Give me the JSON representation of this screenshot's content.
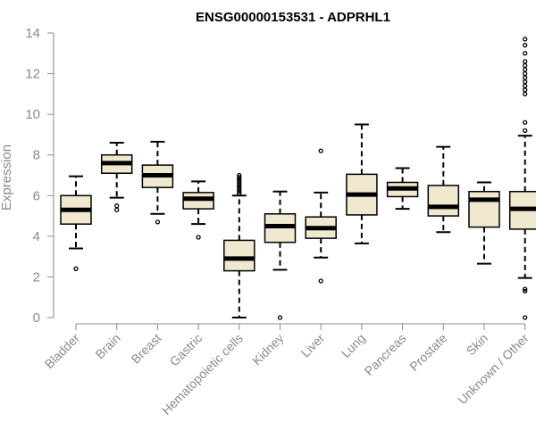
{
  "chart_data": {
    "type": "boxplot",
    "title": "ENSG00000153531 - ADPRHL1",
    "xlabel": "",
    "ylabel": "Expression",
    "ylim": [
      0,
      14
    ],
    "yticks": [
      0,
      2,
      4,
      6,
      8,
      10,
      12,
      14
    ],
    "grid": false,
    "colors": {
      "box_fill": "#f0e8cf",
      "box_stroke": "#000000",
      "axis": "#8a8a8a",
      "label": "#8a8a8a"
    },
    "categories": [
      "Bladder",
      "Brain",
      "Breast",
      "Gastric",
      "Hematopoietic cells",
      "Kidney",
      "Liver",
      "Lung",
      "Pancreas",
      "Prostate",
      "Skin",
      "Unknown / Other"
    ],
    "boxes": [
      {
        "whisker_low": 3.4,
        "q1": 4.6,
        "median": 5.3,
        "q3": 6.0,
        "whisker_high": 6.95,
        "outliers": [
          2.4
        ]
      },
      {
        "whisker_low": 5.9,
        "q1": 7.1,
        "median": 7.6,
        "q3": 8.0,
        "whisker_high": 8.6,
        "outliers": [
          5.3,
          5.5
        ]
      },
      {
        "whisker_low": 5.1,
        "q1": 6.4,
        "median": 7.0,
        "q3": 7.5,
        "whisker_high": 8.65,
        "outliers": [
          4.7
        ]
      },
      {
        "whisker_low": 4.6,
        "q1": 5.35,
        "median": 5.85,
        "q3": 6.15,
        "whisker_high": 6.7,
        "outliers": [
          3.95
        ]
      },
      {
        "whisker_low": 0.0,
        "q1": 2.3,
        "median": 2.9,
        "q3": 3.8,
        "whisker_high": 6.0,
        "outliers": [
          6.1,
          6.2,
          6.3,
          6.4,
          6.5,
          6.6,
          6.7,
          6.8,
          6.9,
          7.0
        ]
      },
      {
        "whisker_low": 2.35,
        "q1": 3.7,
        "median": 4.5,
        "q3": 5.1,
        "whisker_high": 6.2,
        "outliers": [
          0.0
        ]
      },
      {
        "whisker_low": 2.95,
        "q1": 3.9,
        "median": 4.4,
        "q3": 4.95,
        "whisker_high": 6.15,
        "outliers": [
          1.8,
          8.2
        ]
      },
      {
        "whisker_low": 3.65,
        "q1": 5.05,
        "median": 6.05,
        "q3": 7.05,
        "whisker_high": 9.5,
        "outliers": []
      },
      {
        "whisker_low": 5.35,
        "q1": 5.95,
        "median": 6.35,
        "q3": 6.65,
        "whisker_high": 7.35,
        "outliers": []
      },
      {
        "whisker_low": 4.2,
        "q1": 5.0,
        "median": 5.45,
        "q3": 6.5,
        "whisker_high": 8.4,
        "outliers": []
      },
      {
        "whisker_low": 2.65,
        "q1": 4.45,
        "median": 5.8,
        "q3": 6.2,
        "whisker_high": 6.65,
        "outliers": []
      },
      {
        "whisker_low": 1.95,
        "q1": 4.35,
        "median": 5.35,
        "q3": 6.2,
        "whisker_high": 8.95,
        "outliers": [
          0.0,
          1.3,
          1.4,
          9.2,
          9.6,
          11.0,
          11.2,
          11.4,
          11.6,
          11.8,
          12.0,
          12.2,
          12.4,
          12.6,
          13.0,
          13.4,
          13.7
        ]
      }
    ]
  }
}
